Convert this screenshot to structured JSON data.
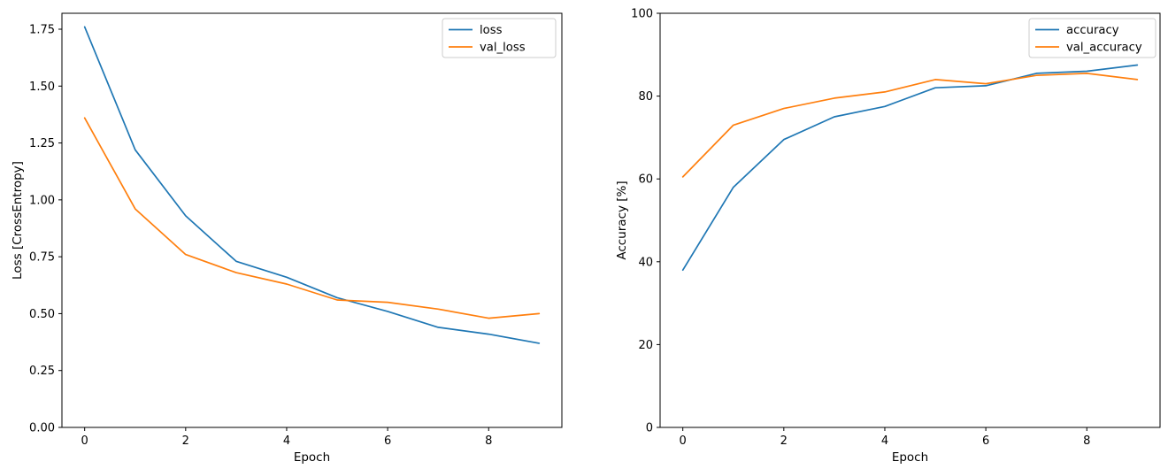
{
  "figure": {
    "background": "#ffffff",
    "accent_blue": "#1f77b4",
    "accent_orange": "#ff7f0e"
  },
  "chart_data": [
    {
      "id": "loss-chart",
      "type": "line",
      "title": "",
      "xlabel": "Epoch",
      "ylabel": "Loss [CrossEntropy]",
      "x": [
        0,
        1,
        2,
        3,
        4,
        5,
        6,
        7,
        8,
        9
      ],
      "xlim": [
        -0.45,
        9.45
      ],
      "ylim": [
        0,
        1.82
      ],
      "xticks": [
        0,
        2,
        4,
        6,
        8
      ],
      "xtick_labels": [
        "0",
        "2",
        "4",
        "6",
        "8"
      ],
      "yticks": [
        0,
        0.25,
        0.5,
        0.75,
        1.0,
        1.25,
        1.5,
        1.75
      ],
      "ytick_labels": [
        "0.00",
        "0.25",
        "0.50",
        "0.75",
        "1.00",
        "1.25",
        "1.50",
        "1.75"
      ],
      "grid": false,
      "legend": {
        "position": "upper right",
        "entries": [
          "loss",
          "val_loss"
        ]
      },
      "series": [
        {
          "name": "loss",
          "color": "#1f77b4",
          "values": [
            1.76,
            1.22,
            0.93,
            0.73,
            0.66,
            0.57,
            0.51,
            0.44,
            0.41,
            0.37
          ]
        },
        {
          "name": "val_loss",
          "color": "#ff7f0e",
          "values": [
            1.36,
            0.96,
            0.76,
            0.68,
            0.63,
            0.56,
            0.55,
            0.52,
            0.48,
            0.5
          ]
        }
      ]
    },
    {
      "id": "accuracy-chart",
      "type": "line",
      "title": "",
      "xlabel": "Epoch",
      "ylabel": "Accuracy [%]",
      "x": [
        0,
        1,
        2,
        3,
        4,
        5,
        6,
        7,
        8,
        9
      ],
      "xlim": [
        -0.45,
        9.45
      ],
      "ylim": [
        0,
        100
      ],
      "xticks": [
        0,
        2,
        4,
        6,
        8
      ],
      "xtick_labels": [
        "0",
        "2",
        "4",
        "6",
        "8"
      ],
      "yticks": [
        0,
        20,
        40,
        60,
        80,
        100
      ],
      "ytick_labels": [
        "0",
        "20",
        "40",
        "60",
        "80",
        "100"
      ],
      "grid": false,
      "legend": {
        "position": "upper right",
        "entries": [
          "accuracy",
          "val_accuracy"
        ]
      },
      "series": [
        {
          "name": "accuracy",
          "color": "#1f77b4",
          "values": [
            38,
            58,
            69.5,
            75,
            77.5,
            82,
            82.5,
            85.5,
            86,
            87.5
          ]
        },
        {
          "name": "val_accuracy",
          "color": "#ff7f0e",
          "values": [
            60.5,
            73,
            77,
            79.5,
            81,
            84,
            83,
            85,
            85.5,
            84
          ]
        }
      ]
    }
  ]
}
